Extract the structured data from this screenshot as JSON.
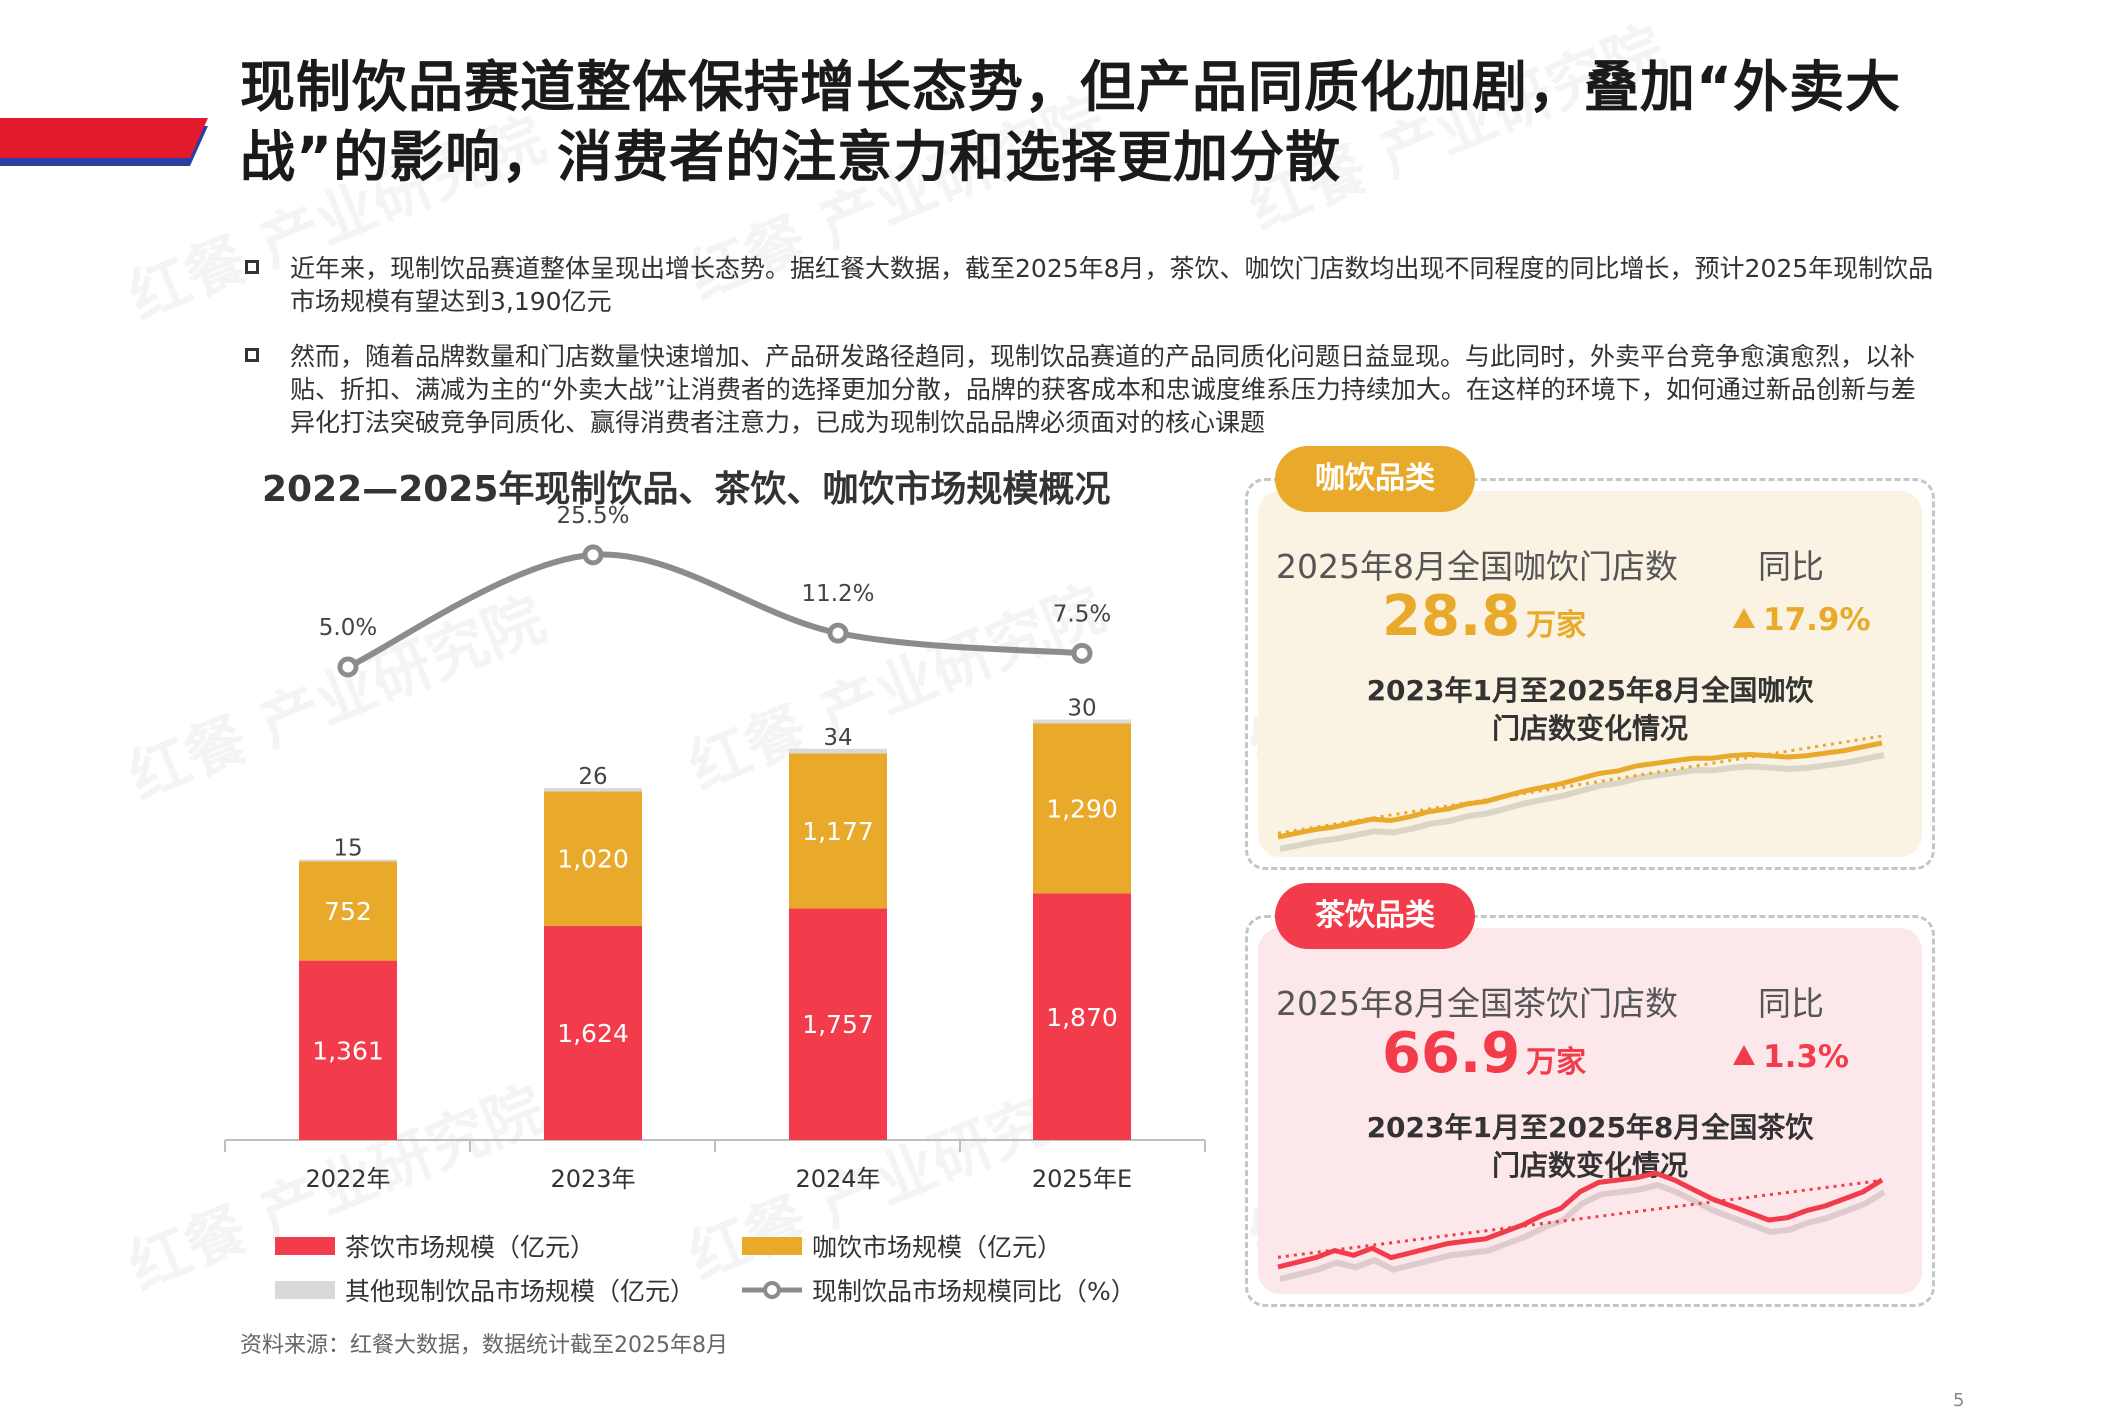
{
  "title": "现制饮品赛道整体保持增长态势，但产品同质化加剧，叠加“外卖大战”的影响，消费者的注意力和选择更加分散",
  "watermark": "红餐 产业研究院",
  "bullets": [
    "近年来，现制饮品赛道整体呈现出增长态势。据红餐大数据，截至2025年8月，茶饮、咖饮门店数均出现不同程度的同比增长，预计2025年现制饮品市场规模有望达到3,190亿元",
    "然而，随着品牌数量和门店数量快速增加、产品研发路径趋同，现制饮品赛道的产品同质化问题日益显现。与此同时，外卖平台竞争愈演愈烈，以补贴、折扣、满减为主的“外卖大战”让消费者的选择更加分散，品牌的获客成本和忠诚度维系压力持续加大。在这样的环境下，如何通过新品创新与差异化打法突破竞争同质化、赢得消费者注意力，已成为现制饮品品牌必须面对的核心课题"
  ],
  "chart_data": {
    "type": "bar",
    "title": "2022—2025年现制饮品、茶饮、咖饮市场规模概况",
    "stacked": true,
    "categories": [
      "2022年",
      "2023年",
      "2024年",
      "2025年E"
    ],
    "series": [
      {
        "name": "茶饮市场规模（亿元）",
        "values": [
          1361,
          1624,
          1757,
          1870
        ],
        "labels": [
          "1,361",
          "1,624",
          "1,757",
          "1,870"
        ],
        "color": "#F23B4B"
      },
      {
        "name": "咖饮市场规模（亿元）",
        "values": [
          752,
          1020,
          1177,
          1290
        ],
        "labels": [
          "752",
          "1,020",
          "1,177",
          "1,290"
        ],
        "color": "#E9AA2C"
      },
      {
        "name": "其他现制饮品市场规模（亿元）",
        "values": [
          15,
          26,
          34,
          30
        ],
        "labels": [
          "15",
          "26",
          "34",
          "30"
        ],
        "color": "#D9D9D9"
      }
    ],
    "line": {
      "name": "现制饮品市场规模同比（%）",
      "values": [
        5.0,
        25.5,
        11.2,
        7.5
      ],
      "labels": [
        "5.0%",
        "25.5%",
        "11.2%",
        "7.5%"
      ],
      "color": "#8C8C8C"
    },
    "grid": false,
    "legend": "bottom"
  },
  "source": "资料来源：红餐大数据，数据统计截至2025年8月",
  "page_number": "5",
  "coffee_panel": {
    "tag": "咖饮品类",
    "label": "2025年8月全国咖饮门店数",
    "yoy_label": "同比",
    "value": "28.8",
    "unit": "万家",
    "yoy": "17.9%",
    "subtitle_line1": "2023年1月至2025年8月全国咖饮",
    "subtitle_line2": "门店数变化情况",
    "color": "#E9AA2C",
    "bg": "#FAF3E3",
    "trend": [
      0,
      1.5,
      3,
      4,
      5.5,
      7,
      6.5,
      8,
      10,
      11,
      13,
      14,
      16,
      18,
      19.5,
      21,
      23,
      25,
      26,
      28,
      29,
      30,
      31,
      31,
      32,
      32.5,
      32,
      31.5,
      32,
      33,
      34,
      35.5,
      37
    ]
  },
  "tea_panel": {
    "tag": "茶饮品类",
    "label": "2025年8月全国茶饮门店数",
    "yoy_label": "同比",
    "value": "66.9",
    "unit": "万家",
    "yoy": "1.3%",
    "subtitle_line1": "2023年1月至2025年8月全国茶饮",
    "subtitle_line2": "门店数变化情况",
    "color": "#F23B4B",
    "bg": "#FCE8EA",
    "trend": [
      0,
      2,
      4,
      7,
      5,
      8,
      4,
      6,
      8,
      10,
      11,
      12,
      15,
      18,
      22,
      25,
      32,
      36,
      37,
      38,
      40,
      37,
      33,
      29,
      26,
      23,
      20,
      21,
      24,
      26,
      29,
      32,
      37
    ]
  }
}
